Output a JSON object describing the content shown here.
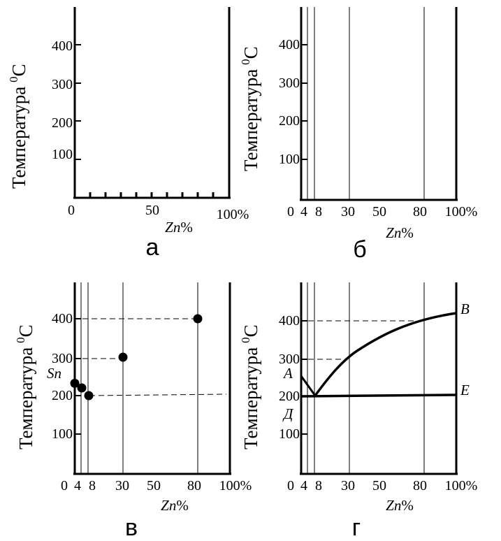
{
  "y_axis": {
    "label": "Температура",
    "unit_sup": "0",
    "unit": "C",
    "ticks": [
      "100",
      "200",
      "300",
      "400"
    ]
  },
  "x_axis_label": {
    "italic": "Zn",
    "suffix": "%"
  },
  "panels": [
    {
      "letter": "а",
      "ticks": [
        "0",
        "50",
        "100%"
      ]
    },
    {
      "letter": "б",
      "ticks": [
        "0",
        "4",
        "8",
        "30",
        "50",
        "80",
        "100%"
      ]
    },
    {
      "letter": "в",
      "ticks": [
        "0",
        "4",
        "8",
        "30",
        "50",
        "80",
        "100%"
      ]
    },
    {
      "letter": "г",
      "ticks": [
        "0",
        "4",
        "8",
        "30",
        "50",
        "80",
        "100%"
      ]
    }
  ],
  "panel_v_points": {
    "sn_label": "Sn",
    "items": [
      {
        "zn": 0,
        "t": 232
      },
      {
        "zn": 4,
        "t": 220
      },
      {
        "zn": 8,
        "t": 200
      },
      {
        "zn": 30,
        "t": 300
      },
      {
        "zn": 80,
        "t": 400
      }
    ]
  },
  "panel_g_labels": {
    "A": "А",
    "B": "В",
    "E": "Е",
    "D": "Д"
  }
}
